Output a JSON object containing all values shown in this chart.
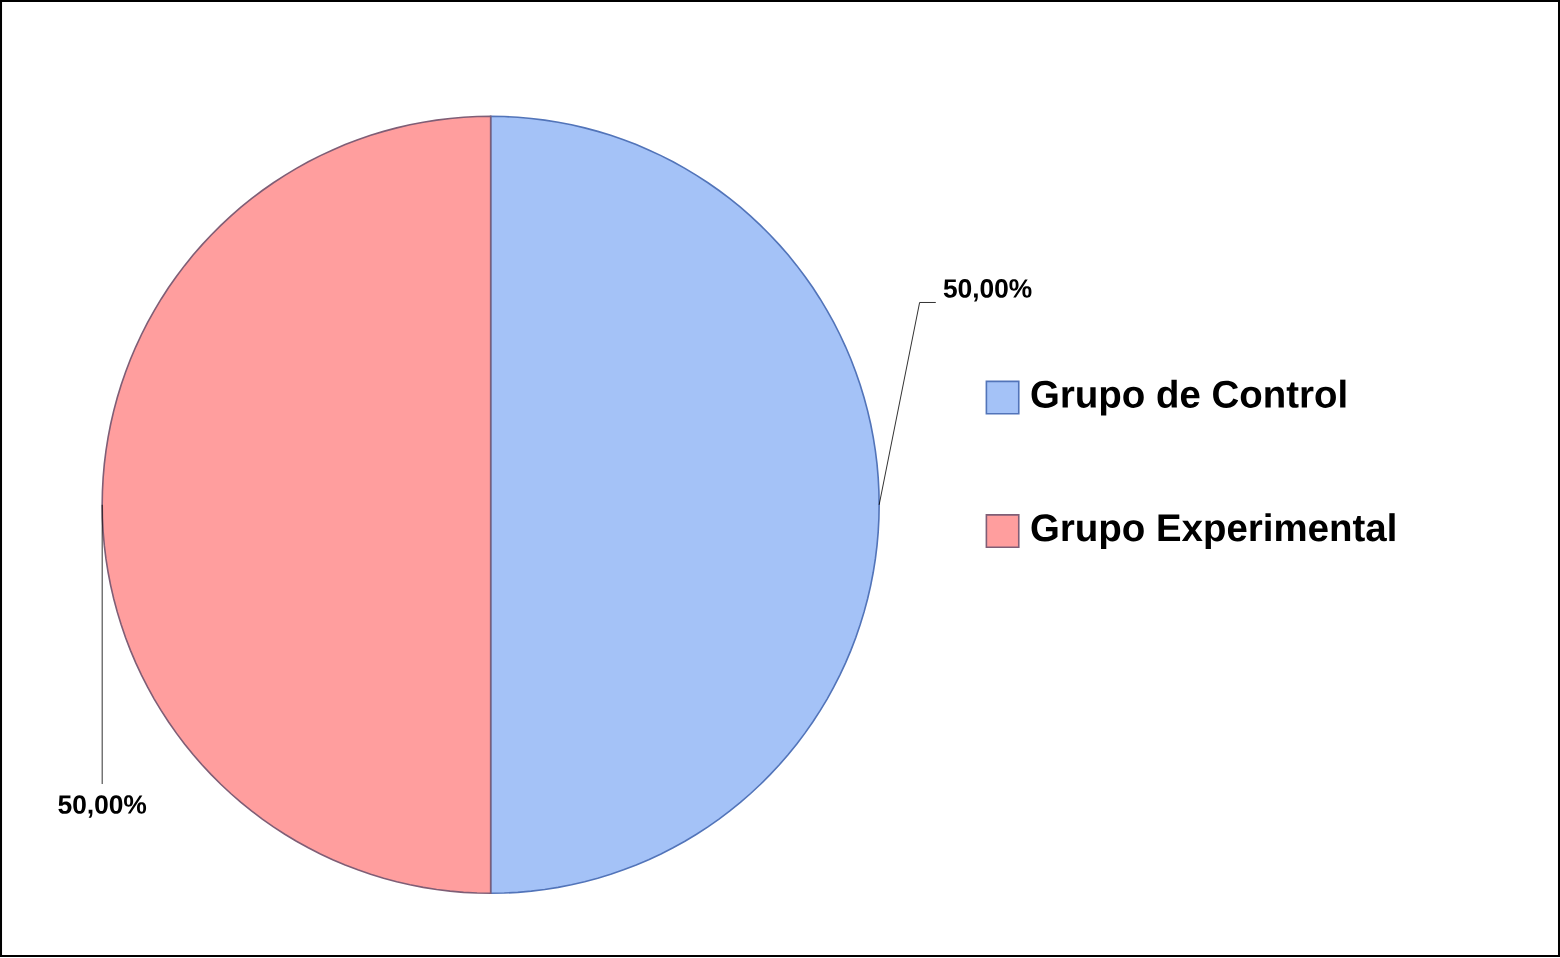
{
  "chart_data": {
    "type": "pie",
    "categories": [
      "Grupo de Control",
      "Grupo Experimental"
    ],
    "values": [
      50,
      50
    ],
    "colors": [
      "#a4c2f7",
      "#ff9e9e"
    ],
    "value_labels": [
      "50,00%",
      "50,00%"
    ],
    "legend": "right"
  }
}
